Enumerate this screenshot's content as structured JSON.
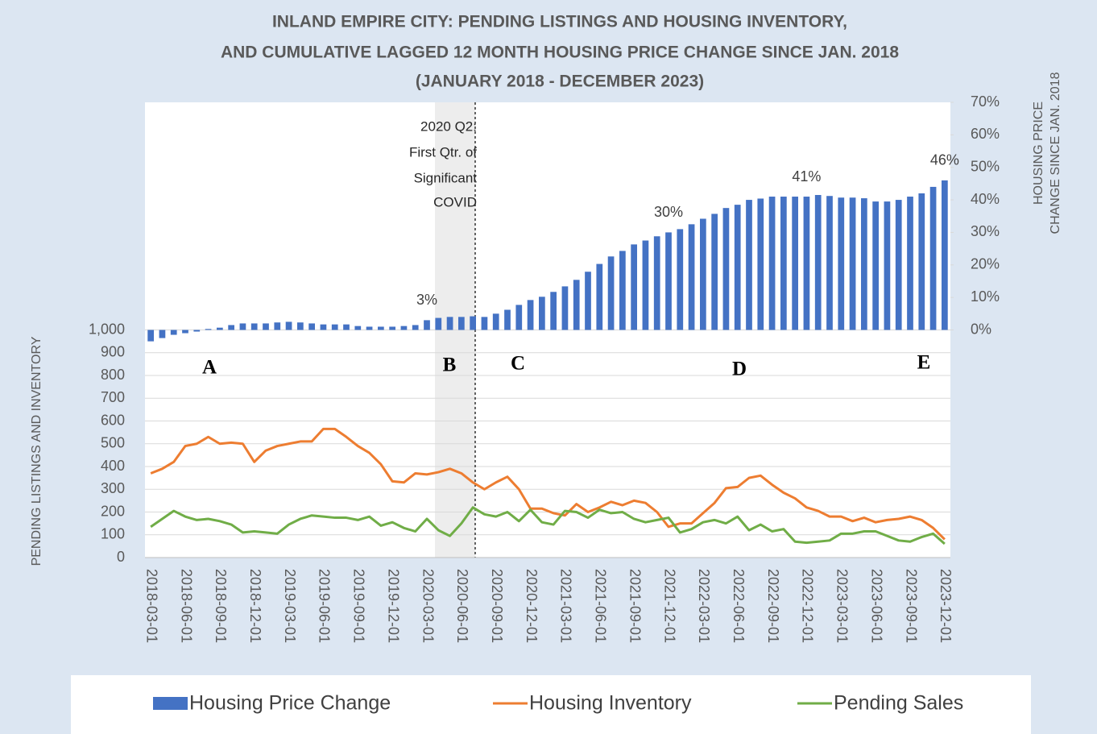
{
  "chart_data": {
    "type": "combo",
    "title": [
      "INLAND EMPIRE CITY:   PENDING LISTINGS AND HOUSING INVENTORY,",
      "AND CUMULATIVE LAGGED 12 MONTH HOUSING PRICE CHANGE SINCE JAN. 2018",
      "(JANUARY 2018 - DECEMBER 2023)"
    ],
    "y_label": "PENDING LISTINGS AND INVENTORY",
    "y2_label": [
      "HOUSING PRICE",
      "CHANGE SINCE JAN. 2018"
    ],
    "annotation": [
      "2020 Q2:",
      "First Qtr. of",
      "Significant",
      "COVID"
    ],
    "region_labels": [
      "A",
      "B",
      "C",
      "D",
      "E"
    ],
    "categories": [
      "2018-03-01",
      null,
      null,
      "2018-06-01",
      null,
      null,
      "2018-09-01",
      null,
      null,
      "2018-12-01",
      null,
      null,
      "2019-03-01",
      null,
      null,
      "2019-06-01",
      null,
      null,
      "2019-09-01",
      null,
      null,
      "2019-12-01",
      null,
      null,
      "2020-03-01",
      null,
      null,
      "2020-06-01",
      null,
      null,
      "2020-09-01",
      null,
      null,
      "2020-12-01",
      null,
      null,
      "2021-03-01",
      null,
      null,
      "2021-06-01",
      null,
      null,
      "2021-09-01",
      null,
      null,
      "2021-12-01",
      null,
      null,
      "2022-03-01",
      null,
      null,
      "2022-06-01",
      null,
      null,
      "2022-09-01",
      null,
      null,
      "2022-12-01",
      null,
      null,
      "2023-03-01",
      null,
      null,
      "2023-06-01",
      null,
      null,
      "2023-09-01",
      null,
      null,
      "2023-12-01"
    ],
    "ylim": [
      0,
      2000
    ],
    "yticks": [
      0,
      100,
      200,
      300,
      400,
      500,
      600,
      700,
      800,
      900,
      {
        "value": 1000,
        "label": "1,000"
      }
    ],
    "y2lim": [
      -70,
      70
    ],
    "y2ticks": [
      {
        "value": 0,
        "label": "0%"
      },
      {
        "value": 10,
        "label": "10%"
      },
      {
        "value": 20,
        "label": "20%"
      },
      {
        "value": 30,
        "label": "30%"
      },
      {
        "value": 40,
        "label": "40%"
      },
      {
        "value": 50,
        "label": "50%"
      },
      {
        "value": 60,
        "label": "60%"
      },
      {
        "value": 70,
        "label": "70%"
      }
    ],
    "grid": true,
    "legend": "bottom",
    "series": [
      {
        "name": "Housing Price Change",
        "type": "bar",
        "axis": "y2",
        "color": "#4472c4",
        "values": [
          -3.5,
          -2.5,
          -1.5,
          -1,
          -0.5,
          0.3,
          0.7,
          1.5,
          2,
          2,
          2,
          2.3,
          2.5,
          2.3,
          2,
          1.7,
          1.7,
          1.7,
          1.2,
          1,
          1,
          1,
          1.2,
          1.5,
          3,
          3.7,
          4,
          4,
          4.2,
          4,
          5,
          6.2,
          7.7,
          9.2,
          10.2,
          11.7,
          13.4,
          15.4,
          17.9,
          20.3,
          22.6,
          24.3,
          26.3,
          27.5,
          28.8,
          30,
          31,
          32.5,
          34.2,
          35.7,
          37.5,
          38.5,
          40,
          40.4,
          41,
          41,
          41,
          41,
          41.5,
          41.2,
          40.7,
          40.7,
          40.5,
          39.5,
          39.5,
          40,
          41,
          42,
          44,
          46
        ],
        "value_labels": [
          null,
          null,
          null,
          null,
          null,
          null,
          null,
          null,
          null,
          null,
          null,
          null,
          null,
          null,
          null,
          null,
          null,
          null,
          null,
          null,
          null,
          null,
          null,
          null,
          "3%",
          null,
          null,
          null,
          null,
          null,
          null,
          null,
          null,
          null,
          null,
          null,
          null,
          null,
          null,
          null,
          null,
          null,
          null,
          null,
          null,
          "30%",
          null,
          null,
          null,
          null,
          null,
          null,
          null,
          null,
          null,
          null,
          null,
          "41%",
          null,
          null,
          null,
          null,
          null,
          null,
          null,
          null,
          null,
          null,
          null,
          "46%"
        ]
      },
      {
        "name": "Housing Inventory",
        "type": "line",
        "color": "#ed7d31",
        "values": [
          370,
          390,
          420,
          490,
          500,
          530,
          500,
          505,
          500,
          420,
          470,
          490,
          500,
          510,
          510,
          565,
          565,
          530,
          490,
          460,
          410,
          335,
          330,
          370,
          365,
          375,
          390,
          370,
          330,
          300,
          330,
          355,
          300,
          215,
          215,
          195,
          185,
          235,
          200,
          220,
          245,
          230,
          250,
          240,
          200,
          135,
          150,
          150,
          195,
          240,
          305,
          310,
          350,
          360,
          320,
          285,
          260,
          220,
          205,
          180,
          180,
          160,
          175,
          155,
          165,
          170,
          180,
          165,
          130,
          80
        ]
      },
      {
        "name": "Pending Sales",
        "type": "line",
        "color": "#70ad47",
        "values": [
          135,
          170,
          205,
          180,
          165,
          170,
          160,
          145,
          110,
          115,
          110,
          105,
          145,
          170,
          185,
          180,
          175,
          175,
          165,
          180,
          140,
          155,
          130,
          115,
          170,
          120,
          95,
          150,
          220,
          190,
          180,
          200,
          160,
          210,
          155,
          145,
          205,
          200,
          175,
          210,
          195,
          200,
          170,
          155,
          165,
          175,
          110,
          125,
          155,
          165,
          150,
          180,
          120,
          145,
          115,
          125,
          70,
          65,
          70,
          75,
          105,
          105,
          115,
          115,
          95,
          75,
          70,
          90,
          105,
          60
        ]
      }
    ]
  }
}
